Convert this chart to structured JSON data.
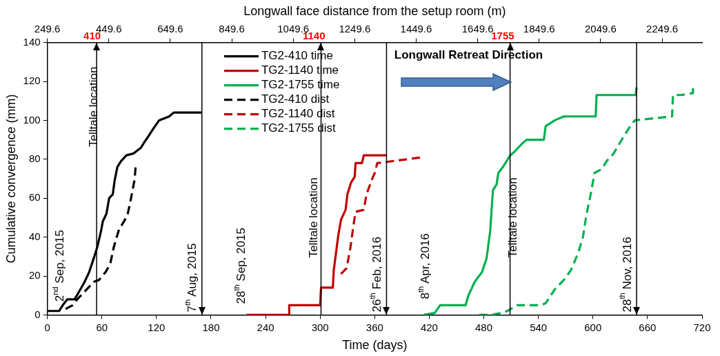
{
  "chart_data": {
    "type": "line",
    "xlabel": "Time (days)",
    "ylabel": "Cumulative convergence (mm)",
    "x2label": "Longwall face distance from the setup room (m)",
    "xlim": [
      0,
      720
    ],
    "xticks": [
      0,
      60,
      120,
      180,
      240,
      300,
      360,
      420,
      480,
      540,
      600,
      660,
      720
    ],
    "x2lim": [
      249.6,
      2379.6
    ],
    "x2ticks": [
      249.6,
      449.6,
      649.6,
      849.6,
      1049.6,
      1249.6,
      1449.6,
      1649.6,
      1849.6,
      2049.6,
      2249.6
    ],
    "ylim": [
      0,
      140
    ],
    "yticks": [
      0,
      20,
      40,
      60,
      80,
      100,
      120,
      140
    ],
    "grid": false,
    "legend": "top",
    "marker": "none",
    "series": [
      {
        "name": "TG2-410 time",
        "color": "#000000",
        "line_style": "solid",
        "x": [
          0.5,
          13,
          17,
          22,
          30,
          35,
          41,
          46,
          51,
          55,
          59,
          61,
          65,
          68,
          72,
          74,
          77,
          81,
          87,
          95,
          103,
          107,
          110,
          117,
          123,
          134,
          139,
          170
        ],
        "values": [
          2,
          2,
          5,
          8,
          8,
          12,
          17,
          22,
          29,
          35,
          43,
          48,
          52,
          60,
          62,
          69,
          76,
          79,
          82,
          83,
          86,
          89,
          91,
          96,
          100,
          102,
          104,
          104
        ]
      },
      {
        "name": "TG2-1140 time",
        "color": "#c00000",
        "line_style": "solid",
        "x": [
          219,
          266,
          266,
          300,
          301,
          314,
          315,
          320,
          323,
          328,
          330,
          334,
          338,
          339,
          346,
          348,
          373
        ],
        "values": [
          0,
          0,
          5,
          5,
          14,
          14,
          23,
          41,
          49,
          54,
          62,
          68,
          71,
          78,
          78,
          82,
          82
        ]
      },
      {
        "name": "TG2-1755 time",
        "color": "#00b050",
        "line_style": "solid",
        "x": [
          414,
          426,
          432,
          460,
          463,
          470,
          478,
          483,
          487,
          490,
          494,
          496,
          501,
          509,
          514,
          522,
          527,
          546,
          548,
          558,
          568,
          603,
          604,
          647,
          648
        ],
        "values": [
          0,
          1,
          5,
          5,
          10,
          17,
          22,
          29,
          43,
          64,
          67,
          73,
          76,
          82,
          84,
          88,
          90,
          90,
          97,
          100,
          102,
          102,
          113,
          113,
          117
        ]
      },
      {
        "name": "TG2-410 dist",
        "color": "#000000",
        "line_style": "dashed",
        "axis": "x2",
        "x": [
          309,
          332,
          347,
          371,
          401,
          418,
          439,
          454,
          466,
          483,
          495,
          510,
          522,
          534,
          537
        ],
        "values": [
          3,
          5,
          8,
          12,
          17,
          18,
          22,
          26,
          35,
          44,
          47,
          51,
          60,
          70,
          77
        ]
      },
      {
        "name": "TG2-1140 dist",
        "color": "#c00000",
        "line_style": "dashed",
        "axis": "x2",
        "x": [
          1205,
          1223,
          1235,
          1243,
          1252,
          1279,
          1288,
          1309,
          1315,
          1323,
          1468
        ],
        "values": [
          21,
          24,
          34,
          43,
          53,
          54,
          62,
          71,
          73,
          78,
          81
        ]
      },
      {
        "name": "TG2-1755 dist",
        "color": "#00b050",
        "line_style": "dashed",
        "axis": "x2",
        "x": [
          1655,
          1693,
          1726,
          1746,
          1779,
          1856,
          1871,
          1900,
          1930,
          1953,
          1977,
          1992,
          2004,
          2016,
          2030,
          2054,
          2069,
          2092,
          2122,
          2146,
          2161,
          2282,
          2285,
          2311,
          2350,
          2350
        ],
        "values": [
          0,
          0,
          1,
          2,
          5,
          5,
          6,
          13,
          18,
          23,
          32,
          40,
          52,
          61,
          73,
          75,
          79,
          83,
          91,
          97,
          100,
          102,
          113,
          113,
          114,
          117
        ]
      }
    ],
    "ref_lines": [
      {
        "axis": "x2",
        "value": 410,
        "label": "410",
        "color": "#000000"
      },
      {
        "axis": "x2",
        "value": 1140,
        "label": "1140",
        "color": "#000000"
      },
      {
        "axis": "x2",
        "value": 1755,
        "label": "1755",
        "color": "#000000"
      },
      {
        "axis": "x",
        "value": 170,
        "label": "7$^{th}$ Aug, 2015",
        "color": "#000000"
      },
      {
        "axis": "x",
        "value": 373,
        "label": "26$^{th}$ Feb, 2016",
        "color": "#000000"
      },
      {
        "axis": "x",
        "value": 648,
        "label": "28$^{th}$ Nov, 2016",
        "color": "#000000"
      }
    ],
    "annotations": [
      "Telltale location",
      "Telltale location",
      "Telltale location",
      "2$^{nd}$ Sep, 2015",
      "28$^{th}$ Sep, 2015",
      "8$^{th}$ Apr, 2016",
      "Longwall Retreat Direction"
    ]
  }
}
